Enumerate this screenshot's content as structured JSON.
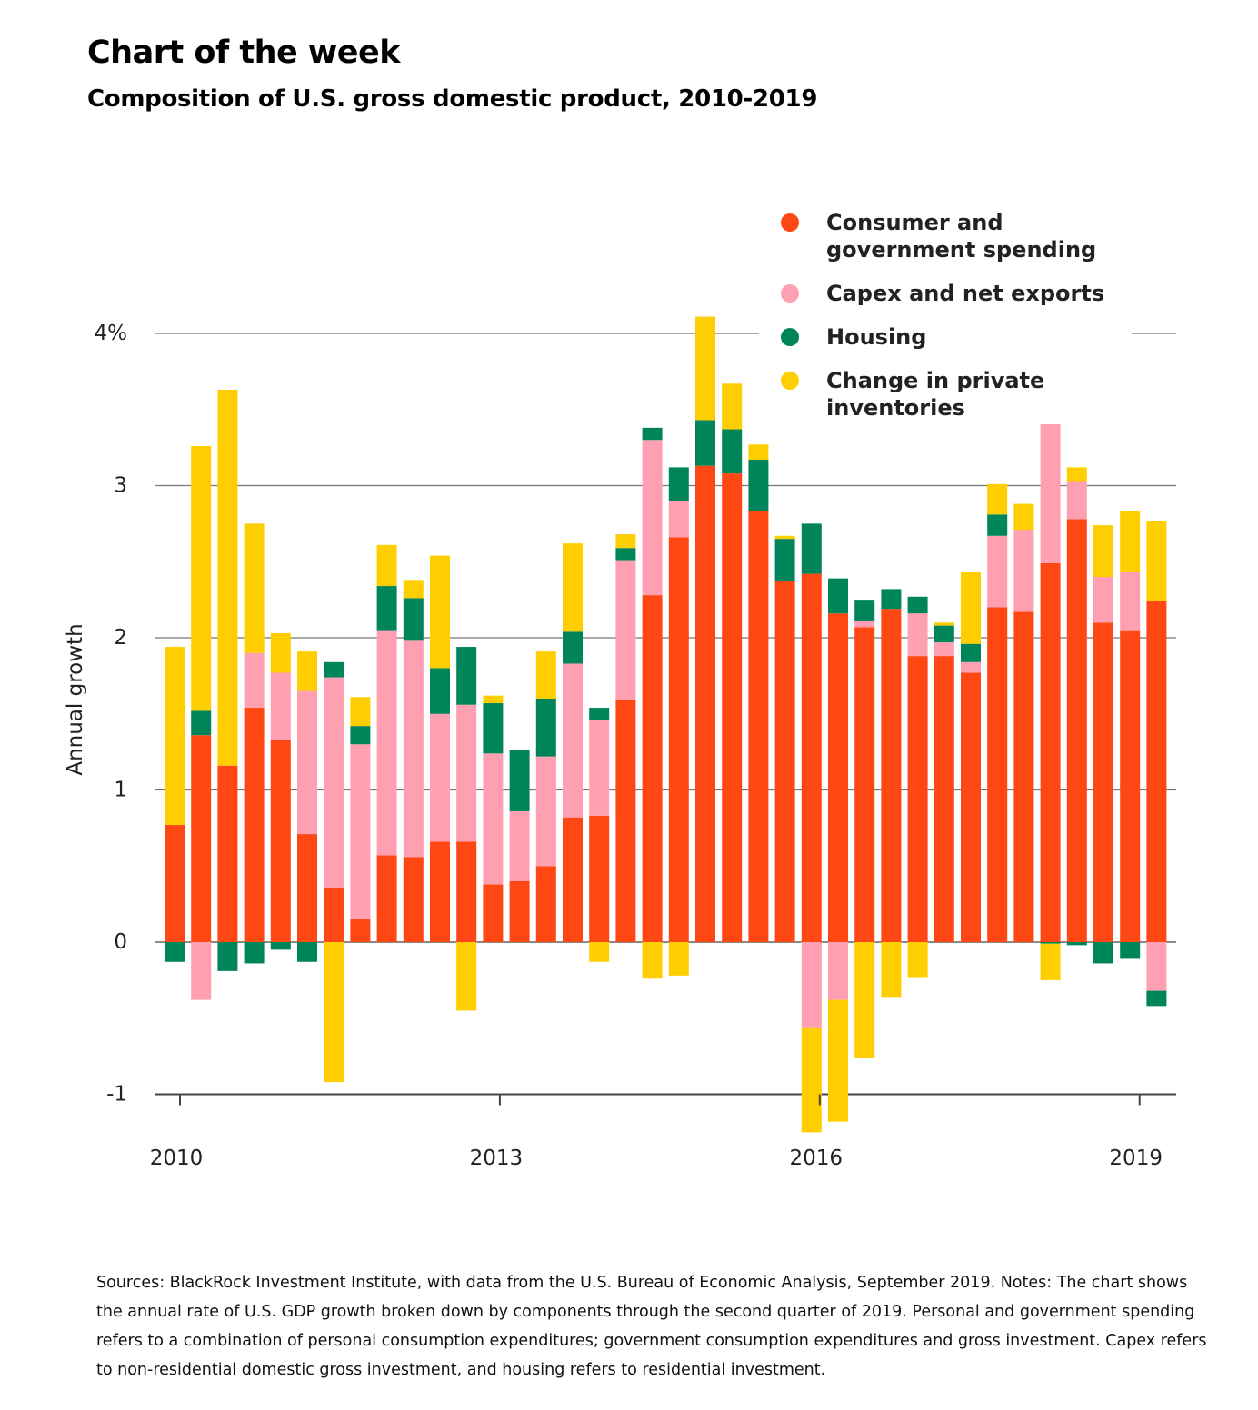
{
  "title": "Chart of the week",
  "subtitle": "Composition of U.S. gross domestic product, 2010-2019",
  "notes": "Sources: BlackRock Investment Institute, with data from the U.S. Bureau of Economic Analysis, September 2019. Notes: The chart shows the annual rate of U.S. GDP growth broken down by components through the second quarter of 2019. Personal and government spending refers to a combination of personal consumption expenditures; government consumption expenditures and gross investment. Capex refers to non-residential domestic gross investment, and housing refers to residential investment.",
  "chart_data": {
    "type": "bar",
    "stacked": true,
    "ylabel": "Annual growth",
    "ylim": [
      -1,
      4
    ],
    "yticks": [
      -1,
      0,
      1,
      2,
      3,
      4
    ],
    "ytick_labels": [
      "-1",
      "0",
      "1",
      "2",
      "3",
      "4%"
    ],
    "xtick_labels": [
      "2010",
      "2013",
      "2016",
      "2019"
    ],
    "legend_position": "top-right",
    "categories": [
      "2010 Q1",
      "2010 Q2",
      "2010 Q3",
      "2010 Q4",
      "2011 Q1",
      "2011 Q2",
      "2011 Q3",
      "2011 Q4",
      "2012 Q1",
      "2012 Q2",
      "2012 Q3",
      "2012 Q4",
      "2013 Q1",
      "2013 Q2",
      "2013 Q3",
      "2013 Q4",
      "2014 Q1",
      "2014 Q2",
      "2014 Q3",
      "2014 Q4",
      "2015 Q1",
      "2015 Q2",
      "2015 Q3",
      "2015 Q4",
      "2016 Q1",
      "2016 Q2",
      "2016 Q3",
      "2016 Q4",
      "2017 Q1",
      "2017 Q2",
      "2017 Q3",
      "2017 Q4",
      "2018 Q1",
      "2018 Q2",
      "2018 Q3",
      "2018 Q4",
      "2019 Q1",
      "2019 Q2"
    ],
    "series": [
      {
        "name": "Consumer and government spending",
        "color": "#ff4713",
        "values": [
          0.77,
          1.36,
          1.16,
          1.54,
          1.33,
          0.71,
          0.36,
          0.15,
          0.57,
          0.56,
          0.66,
          0.66,
          0.38,
          0.4,
          0.5,
          0.82,
          0.83,
          1.59,
          2.28,
          2.66,
          3.13,
          3.08,
          2.83,
          2.37,
          2.42,
          2.16,
          2.07,
          2.19,
          1.88,
          1.88,
          1.77,
          2.2,
          2.17,
          2.49,
          2.78,
          2.1,
          2.05,
          2.24
        ]
      },
      {
        "name": "Capex and net exports",
        "color": "#ff9fb2",
        "values": [
          0,
          -0.38,
          0,
          0.36,
          0.44,
          0.94,
          1.38,
          1.15,
          1.48,
          1.42,
          0.84,
          0.9,
          0.86,
          0.46,
          0.72,
          1.01,
          0.63,
          0.92,
          1.02,
          0.24,
          0,
          0,
          0,
          0,
          -0.56,
          -0.38,
          0.04,
          0,
          0.28,
          0.09,
          0.07,
          0.47,
          0.54,
          0.94,
          0.25,
          0.3,
          0.38,
          -0.32
        ]
      },
      {
        "name": "Housing",
        "color": "#00845a",
        "values": [
          -0.13,
          0.16,
          -0.19,
          -0.14,
          -0.05,
          -0.13,
          0.1,
          0.12,
          0.29,
          0.28,
          0.3,
          0.38,
          0.33,
          0.4,
          0.38,
          0.21,
          0.08,
          0.08,
          0.08,
          0.22,
          0.3,
          0.29,
          0.34,
          0.28,
          0.33,
          0.23,
          0.14,
          0.13,
          0.11,
          0.11,
          0.12,
          0.14,
          0,
          -0.01,
          -0.02,
          -0.14,
          -0.11,
          -0.1
        ]
      },
      {
        "name": "Change in private inventories",
        "color": "#ffce00",
        "values": [
          1.17,
          1.74,
          2.47,
          0.85,
          0.26,
          0.26,
          -0.92,
          0.19,
          0.27,
          0.12,
          0.74,
          -0.45,
          0.05,
          0,
          0.31,
          0.58,
          -0.13,
          0.09,
          -0.24,
          -0.22,
          0.68,
          0.3,
          0.1,
          0.02,
          -0.69,
          -0.8,
          -0.76,
          -0.36,
          -0.23,
          0.02,
          0.47,
          0.2,
          0.17,
          -0.24,
          0.09,
          0.34,
          0.4,
          0.53
        ]
      }
    ]
  }
}
